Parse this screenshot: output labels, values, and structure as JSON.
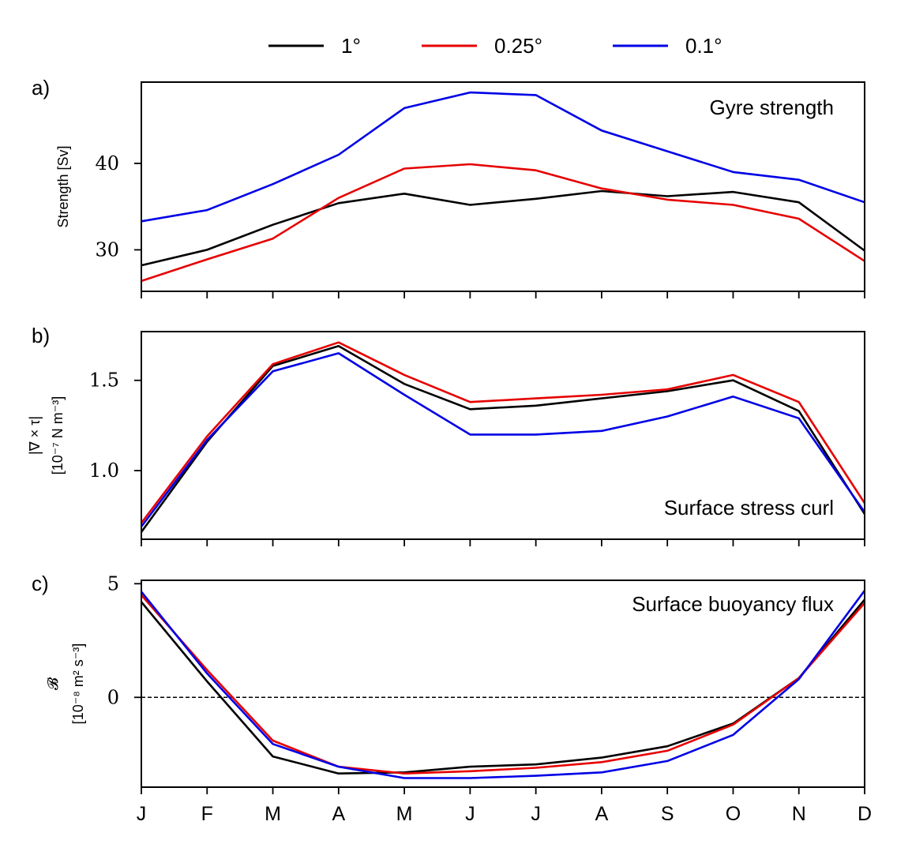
{
  "legend": [
    {
      "label": "1°",
      "color": "#000000"
    },
    {
      "label": "0.25°",
      "color": "#e60000"
    },
    {
      "label": "0.1°",
      "color": "#0000e6"
    }
  ],
  "chart_data": [
    {
      "type": "line",
      "letter": "a)",
      "title": "Gyre strength",
      "ylabel": [
        "Strength [Sv]"
      ],
      "categories": [
        "J",
        "F",
        "M",
        "A",
        "M",
        "J",
        "J",
        "A",
        "S",
        "O",
        "N",
        "D"
      ],
      "ylim": [
        25.2,
        49.4
      ],
      "yticks": [
        30,
        40
      ],
      "show_xticklabels": false,
      "series": [
        {
          "name": "1°",
          "color": "#000000",
          "values": [
            28.2,
            30.0,
            32.9,
            35.4,
            36.5,
            35.2,
            35.9,
            36.8,
            36.2,
            36.7,
            35.5,
            29.9
          ]
        },
        {
          "name": "0.25°",
          "color": "#e60000",
          "values": [
            26.4,
            28.9,
            31.3,
            36.0,
            39.4,
            39.9,
            39.2,
            37.1,
            35.8,
            35.2,
            33.6,
            28.7
          ]
        },
        {
          "name": "0.1°",
          "color": "#0000e6",
          "values": [
            33.3,
            34.6,
            37.6,
            41.0,
            46.4,
            48.2,
            47.9,
            43.8,
            41.4,
            39.0,
            38.1,
            35.5
          ]
        }
      ]
    },
    {
      "type": "line",
      "letter": "b)",
      "title": "Surface stress curl",
      "ylabel": [
        "|∇ × τ|",
        "[10⁻⁷ N m⁻³]"
      ],
      "categories": [
        "J",
        "F",
        "M",
        "A",
        "M",
        "J",
        "J",
        "A",
        "S",
        "O",
        "N",
        "D"
      ],
      "ylim": [
        0.62,
        1.77
      ],
      "yticks": [
        1.0,
        1.5
      ],
      "show_xticklabels": false,
      "series": [
        {
          "name": "1°",
          "color": "#000000",
          "values": [
            0.66,
            1.16,
            1.58,
            1.69,
            1.48,
            1.34,
            1.36,
            1.4,
            1.44,
            1.5,
            1.33,
            0.76
          ]
        },
        {
          "name": "0.25°",
          "color": "#e60000",
          "values": [
            0.71,
            1.19,
            1.59,
            1.71,
            1.53,
            1.38,
            1.4,
            1.42,
            1.45,
            1.53,
            1.38,
            0.82
          ]
        },
        {
          "name": "0.1°",
          "color": "#0000e6",
          "values": [
            0.69,
            1.17,
            1.55,
            1.65,
            1.42,
            1.2,
            1.2,
            1.22,
            1.3,
            1.41,
            1.29,
            0.77
          ]
        }
      ]
    },
    {
      "type": "line",
      "letter": "c)",
      "title": "Surface buoyancy flux",
      "ylabel": [
        "𝓑",
        "[10⁻⁸ m² s⁻³]"
      ],
      "categories": [
        "J",
        "F",
        "M",
        "A",
        "M",
        "J",
        "J",
        "A",
        "S",
        "O",
        "N",
        "D"
      ],
      "ylim": [
        -3.95,
        5.15
      ],
      "yticks": [
        0,
        5
      ],
      "zero_line": true,
      "show_xticklabels": true,
      "series": [
        {
          "name": "1°",
          "color": "#000000",
          "values": [
            4.2,
            0.7,
            -2.6,
            -3.35,
            -3.3,
            -3.05,
            -2.95,
            -2.65,
            -2.15,
            -1.15,
            0.85,
            4.3
          ]
        },
        {
          "name": "0.25°",
          "color": "#e60000",
          "values": [
            4.5,
            1.2,
            -1.9,
            -3.05,
            -3.35,
            -3.25,
            -3.1,
            -2.85,
            -2.35,
            -1.2,
            0.85,
            4.15
          ]
        },
        {
          "name": "0.1°",
          "color": "#0000e6",
          "values": [
            4.65,
            1.05,
            -2.05,
            -3.05,
            -3.55,
            -3.55,
            -3.45,
            -3.3,
            -2.8,
            -1.65,
            0.8,
            4.7
          ]
        }
      ]
    }
  ]
}
